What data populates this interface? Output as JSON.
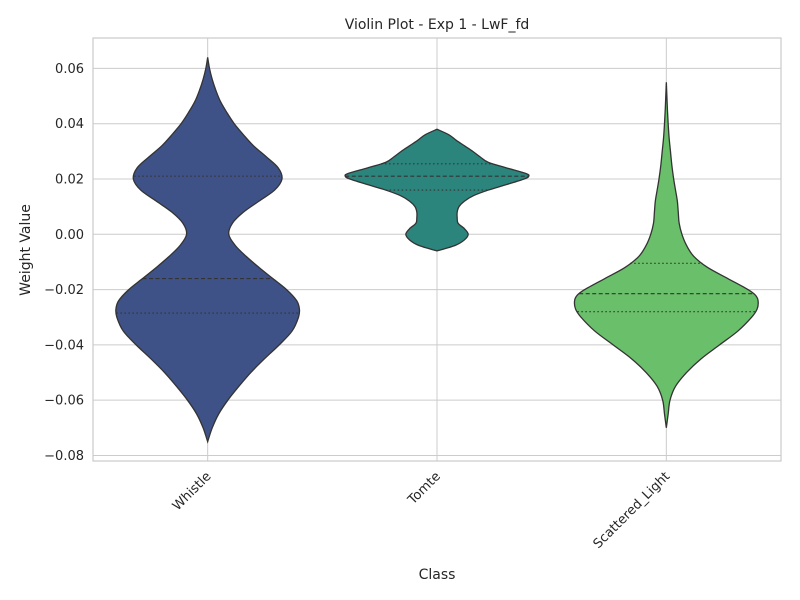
{
  "chart_data": {
    "type": "violin",
    "title": "Violin Plot - Exp 1 - LwF_fd",
    "xlabel": "Class",
    "ylabel": "Weight Value",
    "ylim": [
      -0.082,
      0.071
    ],
    "yticks": [
      -0.08,
      -0.06,
      -0.04,
      -0.02,
      0.0,
      0.02,
      0.04,
      0.06
    ],
    "ytick_labels": [
      "−0.08",
      "−0.06",
      "−0.04",
      "−0.02",
      "0.00",
      "0.02",
      "0.04",
      "0.06"
    ],
    "grid": true,
    "categories": [
      "Whistle",
      "Tomte",
      "Scattered_Light"
    ],
    "colors": [
      "#3f5287",
      "#2b857c",
      "#6abf6a"
    ],
    "violins": [
      {
        "category": "Whistle",
        "min": -0.075,
        "max": 0.064,
        "q1": -0.0285,
        "median": -0.016,
        "q3": 0.021,
        "density_y": [
          -0.075,
          -0.07,
          -0.065,
          -0.06,
          -0.055,
          -0.05,
          -0.045,
          -0.04,
          -0.035,
          -0.03,
          -0.027,
          -0.024,
          -0.02,
          -0.016,
          -0.012,
          -0.008,
          -0.004,
          0.0,
          0.004,
          0.008,
          0.012,
          0.016,
          0.02,
          0.024,
          0.028,
          0.032,
          0.036,
          0.04,
          0.044,
          0.048,
          0.052,
          0.056,
          0.06,
          0.064
        ],
        "density_w": [
          0.0,
          0.05,
          0.12,
          0.22,
          0.34,
          0.47,
          0.62,
          0.78,
          0.92,
          0.99,
          1.0,
          0.97,
          0.86,
          0.71,
          0.56,
          0.42,
          0.3,
          0.23,
          0.27,
          0.39,
          0.56,
          0.73,
          0.81,
          0.77,
          0.64,
          0.5,
          0.39,
          0.29,
          0.21,
          0.14,
          0.09,
          0.05,
          0.02,
          0.0
        ]
      },
      {
        "category": "Tomte",
        "min": -0.006,
        "max": 0.038,
        "q1": 0.016,
        "median": 0.021,
        "q3": 0.0255,
        "density_y": [
          -0.006,
          -0.004,
          -0.002,
          0.0,
          0.002,
          0.004,
          0.006,
          0.008,
          0.01,
          0.012,
          0.014,
          0.016,
          0.018,
          0.02,
          0.021,
          0.022,
          0.024,
          0.026,
          0.028,
          0.03,
          0.032,
          0.034,
          0.036,
          0.038
        ],
        "density_w": [
          0.0,
          0.2,
          0.3,
          0.34,
          0.3,
          0.23,
          0.22,
          0.22,
          0.24,
          0.3,
          0.4,
          0.56,
          0.76,
          0.95,
          1.0,
          0.97,
          0.76,
          0.56,
          0.47,
          0.39,
          0.3,
          0.21,
          0.13,
          0.0
        ]
      },
      {
        "category": "Scattered_Light",
        "min": -0.07,
        "max": 0.055,
        "q1": -0.028,
        "median": -0.0215,
        "q3": -0.0105,
        "density_y": [
          -0.07,
          -0.065,
          -0.06,
          -0.055,
          -0.05,
          -0.045,
          -0.04,
          -0.035,
          -0.03,
          -0.027,
          -0.024,
          -0.022,
          -0.02,
          -0.016,
          -0.012,
          -0.008,
          -0.004,
          0.0,
          0.004,
          0.008,
          0.012,
          0.016,
          0.02,
          0.025,
          0.03,
          0.035,
          0.04,
          0.045,
          0.05,
          0.055
        ],
        "density_w": [
          0.0,
          0.02,
          0.04,
          0.1,
          0.22,
          0.38,
          0.58,
          0.78,
          0.93,
          0.99,
          1.0,
          0.97,
          0.89,
          0.67,
          0.45,
          0.3,
          0.22,
          0.17,
          0.14,
          0.13,
          0.12,
          0.1,
          0.08,
          0.06,
          0.045,
          0.03,
          0.02,
          0.012,
          0.006,
          0.0
        ]
      }
    ]
  }
}
